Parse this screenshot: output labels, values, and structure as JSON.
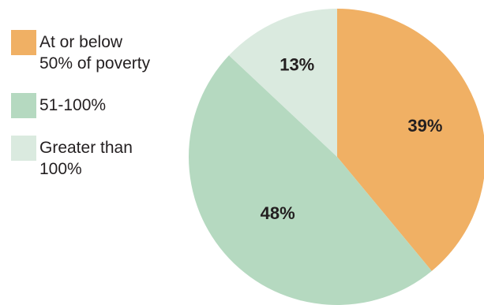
{
  "chart_data": {
    "type": "pie",
    "title": "",
    "categories": [
      "At or below 50% of poverty",
      "51-100%",
      "Greater than 100%"
    ],
    "legend": [
      {
        "label": "At or below\n50% of poverty",
        "color": "#f0b064"
      },
      {
        "label": "51-100%",
        "color": "#b5d9c0"
      },
      {
        "label": "Greater than\n100%",
        "color": "#daeadf"
      }
    ],
    "values": [
      39,
      48,
      13
    ],
    "data_labels": [
      "39%",
      "48%",
      "13%"
    ],
    "colors": [
      "#f0b064",
      "#b5d9c0",
      "#daeadf"
    ],
    "start_angle_deg": 0,
    "direction": "clockwise",
    "legend_position": "left"
  }
}
